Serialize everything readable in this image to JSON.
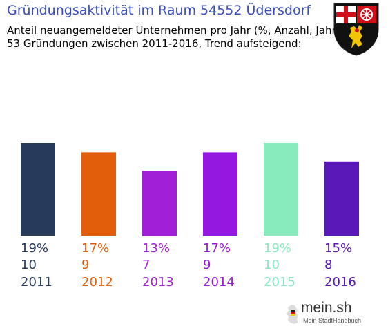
{
  "chart_data": {
    "type": "bar",
    "title": "Gründungsaktivität im Raum 54552 Üdersdorf",
    "subtitle_lines": [
      "Anteil neuangemeldeter Unternehmen pro Jahr (%, Anzahl, Jahr)",
      "53 Gründungen zwischen 2011-2016, Trend aufsteigend:"
    ],
    "categories": [
      "2011",
      "2012",
      "2013",
      "2014",
      "2015",
      "2016"
    ],
    "values": [
      10,
      9,
      7,
      9,
      10,
      8
    ],
    "percent_labels": [
      "19%",
      "17%",
      "13%",
      "17%",
      "19%",
      "15%"
    ],
    "count_labels": [
      "10",
      "9",
      "7",
      "9",
      "10",
      "8"
    ],
    "colors": [
      "#283a5c",
      "#e25e0b",
      "#a020d8",
      "#9418e0",
      "#88ebbe",
      "#5a18b8"
    ],
    "ylim": [
      0,
      10
    ]
  },
  "brand": {
    "name": "mein.sh",
    "tagline": "Mein StadtHandbuch"
  },
  "icons": {
    "crest": "rheinland-pfalz-coat-of-arms-icon",
    "brand_logo": "germany-map-icon"
  }
}
